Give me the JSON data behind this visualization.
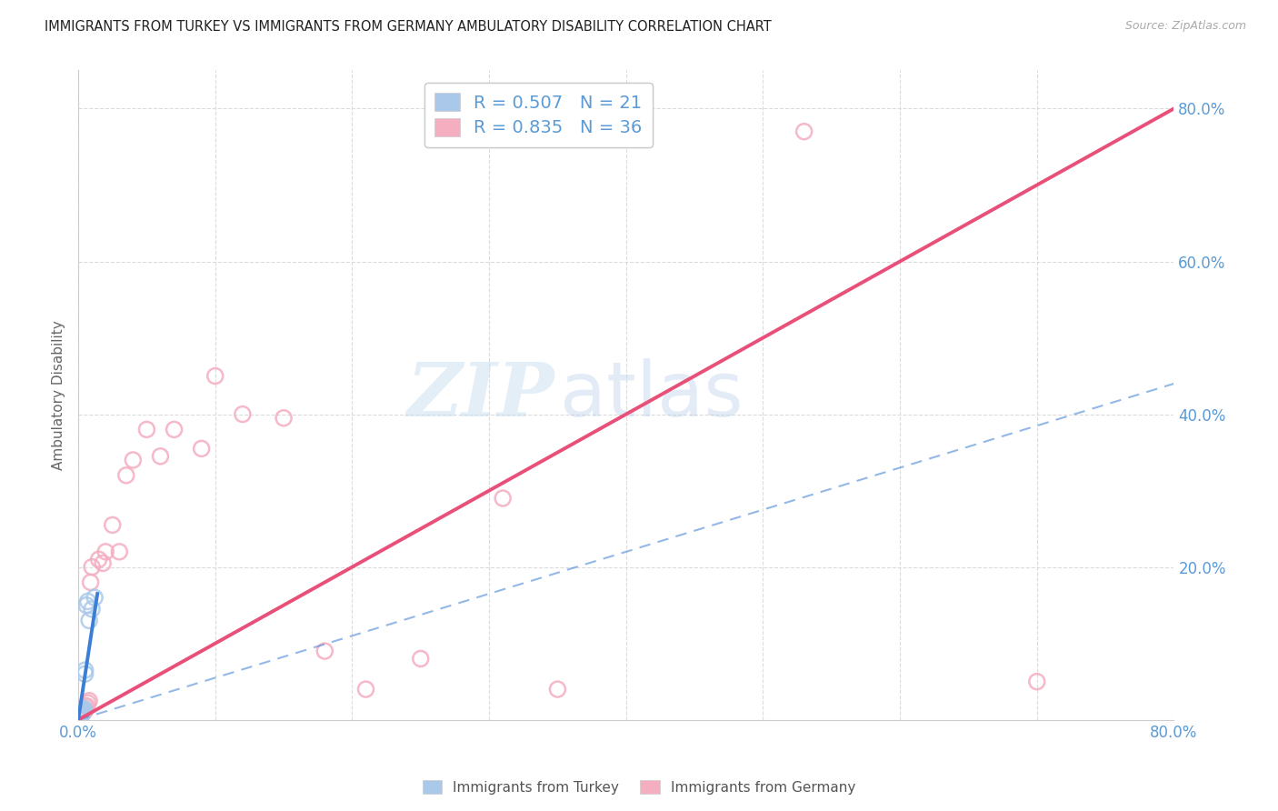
{
  "title": "IMMIGRANTS FROM TURKEY VS IMMIGRANTS FROM GERMANY AMBULATORY DISABILITY CORRELATION CHART",
  "source": "Source: ZipAtlas.com",
  "ylabel": "Ambulatory Disability",
  "xlim": [
    0,
    0.8
  ],
  "ylim": [
    0,
    0.85
  ],
  "xticks": [
    0.0,
    0.1,
    0.2,
    0.3,
    0.4,
    0.5,
    0.6,
    0.7,
    0.8
  ],
  "xticklabels": [
    "0.0%",
    "",
    "",
    "",
    "",
    "",
    "",
    "",
    "80.0%"
  ],
  "ytick_positions": [
    0.2,
    0.4,
    0.6,
    0.8
  ],
  "ytick_labels": [
    "20.0%",
    "40.0%",
    "60.0%",
    "80.0%"
  ],
  "legend_entries": [
    {
      "label": "R = 0.507   N = 21",
      "color": "#aac9ea"
    },
    {
      "label": "R = 0.835   N = 36",
      "color": "#f5adc0"
    }
  ],
  "legend_bottom": [
    {
      "label": "Immigrants from Turkey",
      "color": "#aac9ea"
    },
    {
      "label": "Immigrants from Germany",
      "color": "#f5adc0"
    }
  ],
  "turkey_x": [
    0.0,
    0.001,
    0.001,
    0.001,
    0.001,
    0.002,
    0.002,
    0.002,
    0.002,
    0.003,
    0.003,
    0.003,
    0.004,
    0.004,
    0.005,
    0.005,
    0.006,
    0.007,
    0.008,
    0.01,
    0.012
  ],
  "turkey_y": [
    0.002,
    0.003,
    0.004,
    0.005,
    0.006,
    0.005,
    0.007,
    0.008,
    0.01,
    0.008,
    0.01,
    0.012,
    0.012,
    0.015,
    0.06,
    0.065,
    0.15,
    0.155,
    0.13,
    0.145,
    0.16
  ],
  "germany_x": [
    0.001,
    0.001,
    0.002,
    0.002,
    0.003,
    0.003,
    0.004,
    0.004,
    0.005,
    0.005,
    0.006,
    0.007,
    0.008,
    0.009,
    0.01,
    0.015,
    0.018,
    0.02,
    0.025,
    0.03,
    0.035,
    0.04,
    0.05,
    0.06,
    0.07,
    0.09,
    0.1,
    0.12,
    0.15,
    0.18,
    0.21,
    0.25,
    0.31,
    0.35,
    0.53,
    0.7
  ],
  "germany_y": [
    0.004,
    0.006,
    0.007,
    0.01,
    0.008,
    0.012,
    0.01,
    0.015,
    0.012,
    0.018,
    0.018,
    0.022,
    0.025,
    0.18,
    0.2,
    0.21,
    0.205,
    0.22,
    0.255,
    0.22,
    0.32,
    0.34,
    0.38,
    0.345,
    0.38,
    0.355,
    0.45,
    0.4,
    0.395,
    0.09,
    0.04,
    0.08,
    0.29,
    0.04,
    0.77,
    0.05
  ],
  "turkey_line_color": "#3a7fd5",
  "germany_line_color": "#e85079",
  "turkey_dot_color": "#aac9ea",
  "germany_dot_color": "#f5adc0",
  "blue_dash_line": [
    [
      0.0,
      0.0
    ],
    [
      0.8,
      0.44
    ]
  ],
  "pink_solid_line": [
    [
      0.0,
      0.0
    ],
    [
      0.8,
      0.8
    ]
  ],
  "blue_solid_line_x": [
    0.0,
    0.014
  ],
  "blue_solid_line_y": [
    0.0,
    0.165
  ],
  "watermark_zip": "ZIP",
  "watermark_atlas": "atlas",
  "background_color": "#ffffff",
  "grid_color": "#d8d8d8",
  "tick_color": "#5b9bd5",
  "spine_color": "#cccccc"
}
